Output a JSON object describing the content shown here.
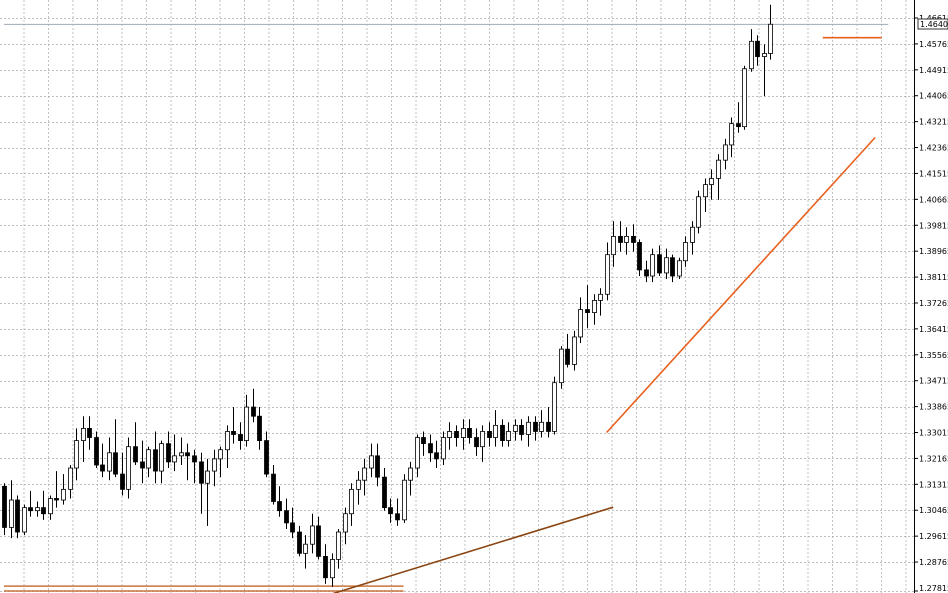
{
  "chart_data": {
    "type": "candlestick",
    "grid": true,
    "y_axis_position": "right",
    "ylim": [
      1.27815,
      1.4706
    ],
    "y_ticks": [
      "1.46615",
      "1.45765",
      "1.44915",
      "1.44065",
      "1.43215",
      "1.42365",
      "1.41515",
      "1.40665",
      "1.39815",
      "1.38965",
      "1.38115",
      "1.37265",
      "1.36415",
      "1.35565",
      "1.34715",
      "1.33865",
      "1.33015",
      "1.32165",
      "1.31315",
      "1.30465",
      "1.29615",
      "1.28765",
      "1.27815"
    ],
    "last_price_label": "1.46406",
    "candles_ohlc": [
      [
        1.3125,
        1.3135,
        1.2965,
        1.299
      ],
      [
        1.299,
        1.3145,
        1.2955,
        1.308
      ],
      [
        1.308,
        1.3095,
        1.2955,
        1.2975
      ],
      [
        1.2975,
        1.3065,
        1.2965,
        1.3055
      ],
      [
        1.3055,
        1.311,
        1.3025,
        1.3045
      ],
      [
        1.3045,
        1.3075,
        1.3025,
        1.3055
      ],
      [
        1.3055,
        1.311,
        1.3015,
        1.3035
      ],
      [
        1.3035,
        1.3095,
        1.3015,
        1.3085
      ],
      [
        1.3085,
        1.3175,
        1.3055,
        1.308
      ],
      [
        1.308,
        1.3165,
        1.3065,
        1.3115
      ],
      [
        1.3115,
        1.3195,
        1.3085,
        1.3185
      ],
      [
        1.3185,
        1.3315,
        1.3145,
        1.3275
      ],
      [
        1.3275,
        1.3355,
        1.3205,
        1.3315
      ],
      [
        1.3315,
        1.3355,
        1.3245,
        1.3285
      ],
      [
        1.3285,
        1.3305,
        1.3185,
        1.3195
      ],
      [
        1.3195,
        1.3265,
        1.3155,
        1.3175
      ],
      [
        1.3175,
        1.3285,
        1.3145,
        1.3235
      ],
      [
        1.3235,
        1.3345,
        1.3155,
        1.3165
      ],
      [
        1.3165,
        1.3235,
        1.3095,
        1.3115
      ],
      [
        1.3115,
        1.3285,
        1.3085,
        1.3255
      ],
      [
        1.3255,
        1.3335,
        1.3195,
        1.3205
      ],
      [
        1.3205,
        1.3275,
        1.3135,
        1.3185
      ],
      [
        1.3185,
        1.3255,
        1.3155,
        1.3245
      ],
      [
        1.3245,
        1.3305,
        1.3135,
        1.3175
      ],
      [
        1.3175,
        1.3275,
        1.3135,
        1.3265
      ],
      [
        1.3265,
        1.3305,
        1.3185,
        1.3205
      ],
      [
        1.3205,
        1.3295,
        1.3175,
        1.3225
      ],
      [
        1.3225,
        1.3285,
        1.3195,
        1.3235
      ],
      [
        1.3235,
        1.3265,
        1.3145,
        1.3225
      ],
      [
        1.3225,
        1.3245,
        1.3135,
        1.3205
      ],
      [
        1.3205,
        1.3235,
        1.3035,
        1.3135
      ],
      [
        1.3135,
        1.3215,
        1.2995,
        1.3175
      ],
      [
        1.3175,
        1.3245,
        1.3125,
        1.3215
      ],
      [
        1.3215,
        1.3255,
        1.3155,
        1.3245
      ],
      [
        1.3245,
        1.3325,
        1.3185,
        1.3305
      ],
      [
        1.3305,
        1.3385,
        1.3265,
        1.3295
      ],
      [
        1.3295,
        1.3335,
        1.3245,
        1.3275
      ],
      [
        1.3275,
        1.3425,
        1.3255,
        1.3385
      ],
      [
        1.3385,
        1.3445,
        1.3335,
        1.3355
      ],
      [
        1.3355,
        1.3385,
        1.3245,
        1.3275
      ],
      [
        1.3275,
        1.3305,
        1.3155,
        1.3165
      ],
      [
        1.3165,
        1.3195,
        1.3065,
        1.3075
      ],
      [
        1.3075,
        1.3125,
        1.3025,
        1.3045
      ],
      [
        1.3045,
        1.3085,
        1.2985,
        1.3005
      ],
      [
        1.3005,
        1.3055,
        1.2955,
        1.2975
      ],
      [
        1.2975,
        1.2995,
        1.2895,
        1.2905
      ],
      [
        1.2905,
        1.2965,
        1.2855,
        1.2935
      ],
      [
        1.2935,
        1.3035,
        1.2905,
        1.2995
      ],
      [
        1.2995,
        1.3025,
        1.2885,
        1.2895
      ],
      [
        1.2895,
        1.2935,
        1.2805,
        1.2825
      ],
      [
        1.2825,
        1.2905,
        1.2795,
        1.2885
      ],
      [
        1.2885,
        1.2985,
        1.2855,
        1.2975
      ],
      [
        1.2975,
        1.3055,
        1.2935,
        1.3035
      ],
      [
        1.3035,
        1.3135,
        1.2995,
        1.3115
      ],
      [
        1.3115,
        1.3175,
        1.3065,
        1.3145
      ],
      [
        1.3145,
        1.3215,
        1.3095,
        1.3185
      ],
      [
        1.3185,
        1.3265,
        1.3155,
        1.3225
      ],
      [
        1.3225,
        1.3265,
        1.3125,
        1.3155
      ],
      [
        1.3155,
        1.3185,
        1.3045,
        1.3055
      ],
      [
        1.3055,
        1.3085,
        1.3005,
        1.3035
      ],
      [
        1.3035,
        1.3085,
        1.2995,
        1.3015
      ],
      [
        1.3015,
        1.3165,
        1.3005,
        1.3145
      ],
      [
        1.3145,
        1.3205,
        1.3095,
        1.3185
      ],
      [
        1.3185,
        1.3295,
        1.3155,
        1.3285
      ],
      [
        1.3285,
        1.3305,
        1.3225,
        1.3265
      ],
      [
        1.3265,
        1.3295,
        1.3205,
        1.3235
      ],
      [
        1.3235,
        1.3275,
        1.3185,
        1.3215
      ],
      [
        1.3215,
        1.3305,
        1.3195,
        1.3285
      ],
      [
        1.3285,
        1.3335,
        1.3245,
        1.3305
      ],
      [
        1.3305,
        1.3325,
        1.3255,
        1.3285
      ],
      [
        1.3285,
        1.3345,
        1.3245,
        1.3315
      ],
      [
        1.3315,
        1.3345,
        1.3265,
        1.3285
      ],
      [
        1.3285,
        1.3315,
        1.3225,
        1.3255
      ],
      [
        1.3255,
        1.3325,
        1.3205,
        1.3305
      ],
      [
        1.3305,
        1.3335,
        1.3255,
        1.3285
      ],
      [
        1.3285,
        1.3375,
        1.3255,
        1.3325
      ],
      [
        1.3325,
        1.3345,
        1.3255,
        1.3275
      ],
      [
        1.3275,
        1.3335,
        1.3255,
        1.3305
      ],
      [
        1.3305,
        1.3345,
        1.3275,
        1.3325
      ],
      [
        1.3325,
        1.3345,
        1.3275,
        1.3295
      ],
      [
        1.3295,
        1.3355,
        1.3255,
        1.3335
      ],
      [
        1.3335,
        1.3355,
        1.3275,
        1.3305
      ],
      [
        1.3305,
        1.3375,
        1.3285,
        1.3335
      ],
      [
        1.3335,
        1.3385,
        1.3285,
        1.3305
      ],
      [
        1.3305,
        1.3485,
        1.3295,
        1.3465
      ],
      [
        1.3465,
        1.3585,
        1.3445,
        1.3575
      ],
      [
        1.3575,
        1.3625,
        1.3515,
        1.3525
      ],
      [
        1.3525,
        1.3635,
        1.3505,
        1.3615
      ],
      [
        1.3615,
        1.3745,
        1.3595,
        1.3705
      ],
      [
        1.3705,
        1.3785,
        1.3645,
        1.3695
      ],
      [
        1.3695,
        1.3755,
        1.3655,
        1.3735
      ],
      [
        1.3735,
        1.3775,
        1.3685,
        1.3755
      ],
      [
        1.3755,
        1.3925,
        1.3735,
        1.3885
      ],
      [
        1.3885,
        1.3995,
        1.3845,
        1.3945
      ],
      [
        1.3945,
        1.3995,
        1.3895,
        1.3925
      ],
      [
        1.3925,
        1.3975,
        1.3885,
        1.3945
      ],
      [
        1.3945,
        1.3985,
        1.3895,
        1.3925
      ],
      [
        1.3925,
        1.3935,
        1.3815,
        1.3835
      ],
      [
        1.3835,
        1.3865,
        1.3795,
        1.3815
      ],
      [
        1.3815,
        1.3905,
        1.3795,
        1.3885
      ],
      [
        1.3885,
        1.3915,
        1.3815,
        1.3825
      ],
      [
        1.3825,
        1.3905,
        1.3805,
        1.3875
      ],
      [
        1.3875,
        1.3885,
        1.3795,
        1.3815
      ],
      [
        1.3815,
        1.3875,
        1.3805,
        1.3865
      ],
      [
        1.3865,
        1.3945,
        1.3845,
        1.3925
      ],
      [
        1.3925,
        1.3995,
        1.3885,
        1.3975
      ],
      [
        1.3975,
        1.4095,
        1.3955,
        1.4075
      ],
      [
        1.4075,
        1.4135,
        1.4025,
        1.4115
      ],
      [
        1.4115,
        1.4165,
        1.4065,
        1.4135
      ],
      [
        1.4135,
        1.4215,
        1.4065,
        1.4195
      ],
      [
        1.4195,
        1.4265,
        1.4165,
        1.4245
      ],
      [
        1.4245,
        1.4335,
        1.4205,
        1.4315
      ],
      [
        1.4315,
        1.4385,
        1.4285,
        1.4305
      ],
      [
        1.4305,
        1.4505,
        1.4295,
        1.4495
      ],
      [
        1.4495,
        1.4625,
        1.4485,
        1.4585
      ],
      [
        1.4585,
        1.4605,
        1.4505,
        1.4535
      ],
      [
        1.4535,
        1.4575,
        1.4405,
        1.4545
      ],
      [
        1.4545,
        1.4705,
        1.4525,
        1.4641
      ]
    ],
    "lines": [
      {
        "name": "support-level",
        "color": "#c9753c",
        "points": [
          [
            0,
            1.27975
          ],
          [
            61,
            1.27975
          ]
        ]
      },
      {
        "name": "support-level-2",
        "color": "#c9753c",
        "points": [
          [
            0,
            1.27815
          ],
          [
            61,
            1.27815
          ]
        ]
      },
      {
        "name": "trendline-lower",
        "color": "#8b4513",
        "points": [
          [
            50,
            1.27715
          ],
          [
            93,
            1.30565
          ]
        ]
      },
      {
        "name": "trendline-upper",
        "color": "#e8601e",
        "points": [
          [
            92,
            1.33015
          ],
          [
            133,
            1.42695
          ]
        ]
      },
      {
        "name": "resistance-level",
        "color": "#e8601e",
        "points": [
          [
            125,
            1.4597
          ],
          [
            134,
            1.4597
          ]
        ]
      },
      {
        "name": "current-price-line",
        "color": "#a0a8b8",
        "points": [
          [
            0,
            1.46406
          ],
          [
            135,
            1.46406
          ]
        ]
      }
    ]
  }
}
